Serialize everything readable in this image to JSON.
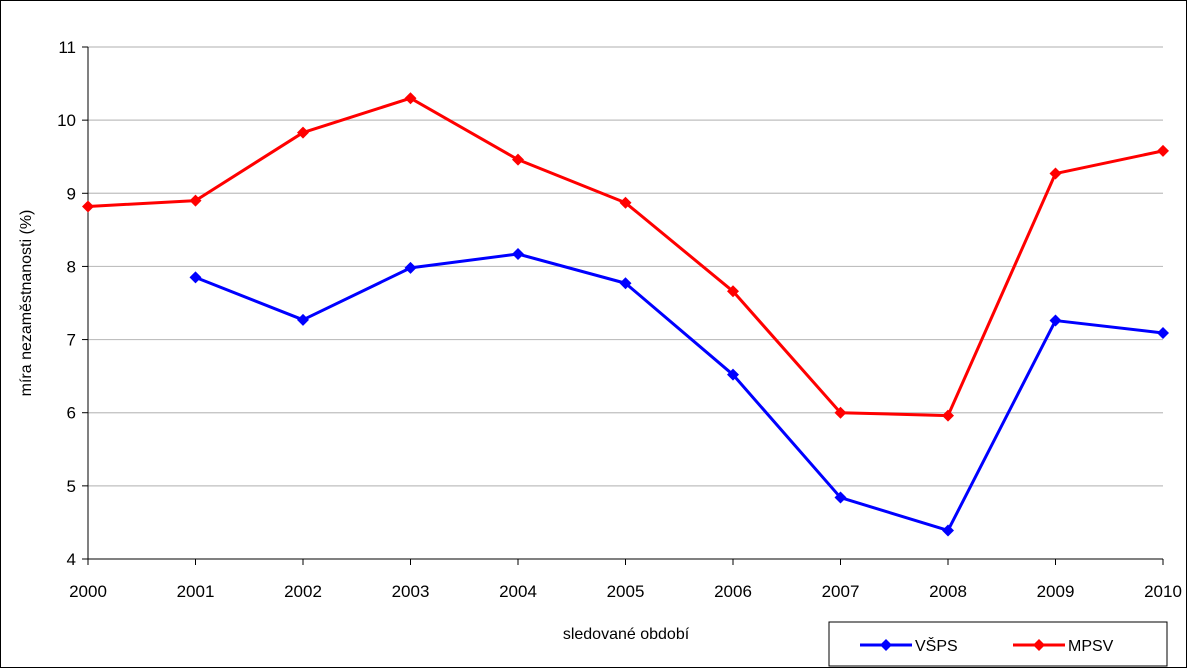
{
  "chart_data": {
    "type": "line",
    "x": [
      "2000",
      "2001",
      "2002",
      "2003",
      "2004",
      "2005",
      "2006",
      "2007",
      "2008",
      "2009",
      "2010"
    ],
    "series": [
      {
        "name": "VŠPS",
        "color": "#0000FF",
        "marker": "diamond",
        "values": [
          null,
          7.85,
          7.27,
          7.98,
          8.17,
          7.77,
          6.52,
          4.84,
          4.39,
          7.26,
          7.09
        ]
      },
      {
        "name": "MPSV",
        "color": "#FF0000",
        "marker": "diamond",
        "values": [
          8.82,
          8.9,
          9.83,
          10.3,
          9.46,
          8.87,
          7.66,
          6.0,
          5.96,
          9.27,
          9.58
        ]
      }
    ],
    "xlabel": "sledované období",
    "ylabel": "míra nezaměstnanosti (%)",
    "ylim": [
      4,
      11
    ],
    "yticks": [
      "4",
      "5",
      "6",
      "7",
      "8",
      "9",
      "10",
      "11"
    ],
    "grid": true,
    "legend_position": "bottom-right"
  }
}
